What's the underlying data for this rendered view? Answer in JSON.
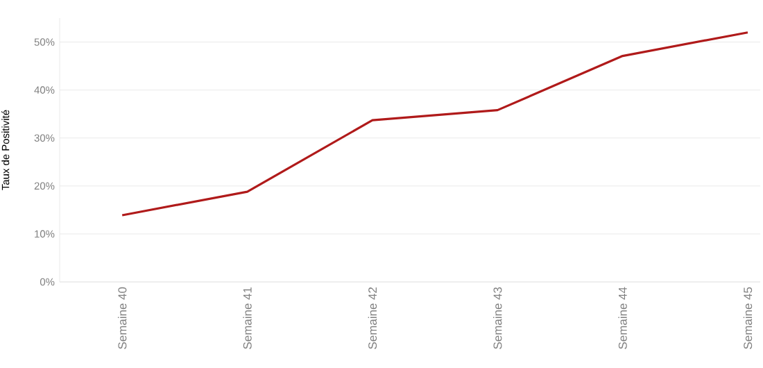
{
  "chart_data": {
    "type": "line",
    "ylabel": "Taux de Positivité",
    "categories": [
      "Semaine 40",
      "Semaine 41",
      "Semaine 42",
      "Semaine 43",
      "Semaine 44",
      "Semaine 45"
    ],
    "series": [
      {
        "color": "#b01a1a",
        "values": [
          13.9,
          18.8,
          33.7,
          35.8,
          47.1,
          52.0
        ]
      }
    ],
    "ylim": [
      0,
      55
    ],
    "yticks": [
      {
        "value": 0,
        "label": "0%"
      },
      {
        "value": 10,
        "label": "10%"
      },
      {
        "value": 20,
        "label": "20%"
      },
      {
        "value": 30,
        "label": "30%"
      },
      {
        "value": 40,
        "label": "40%"
      },
      {
        "value": 50,
        "label": "50%"
      }
    ],
    "grid": "y",
    "marker": "none",
    "line_style": "solid"
  }
}
